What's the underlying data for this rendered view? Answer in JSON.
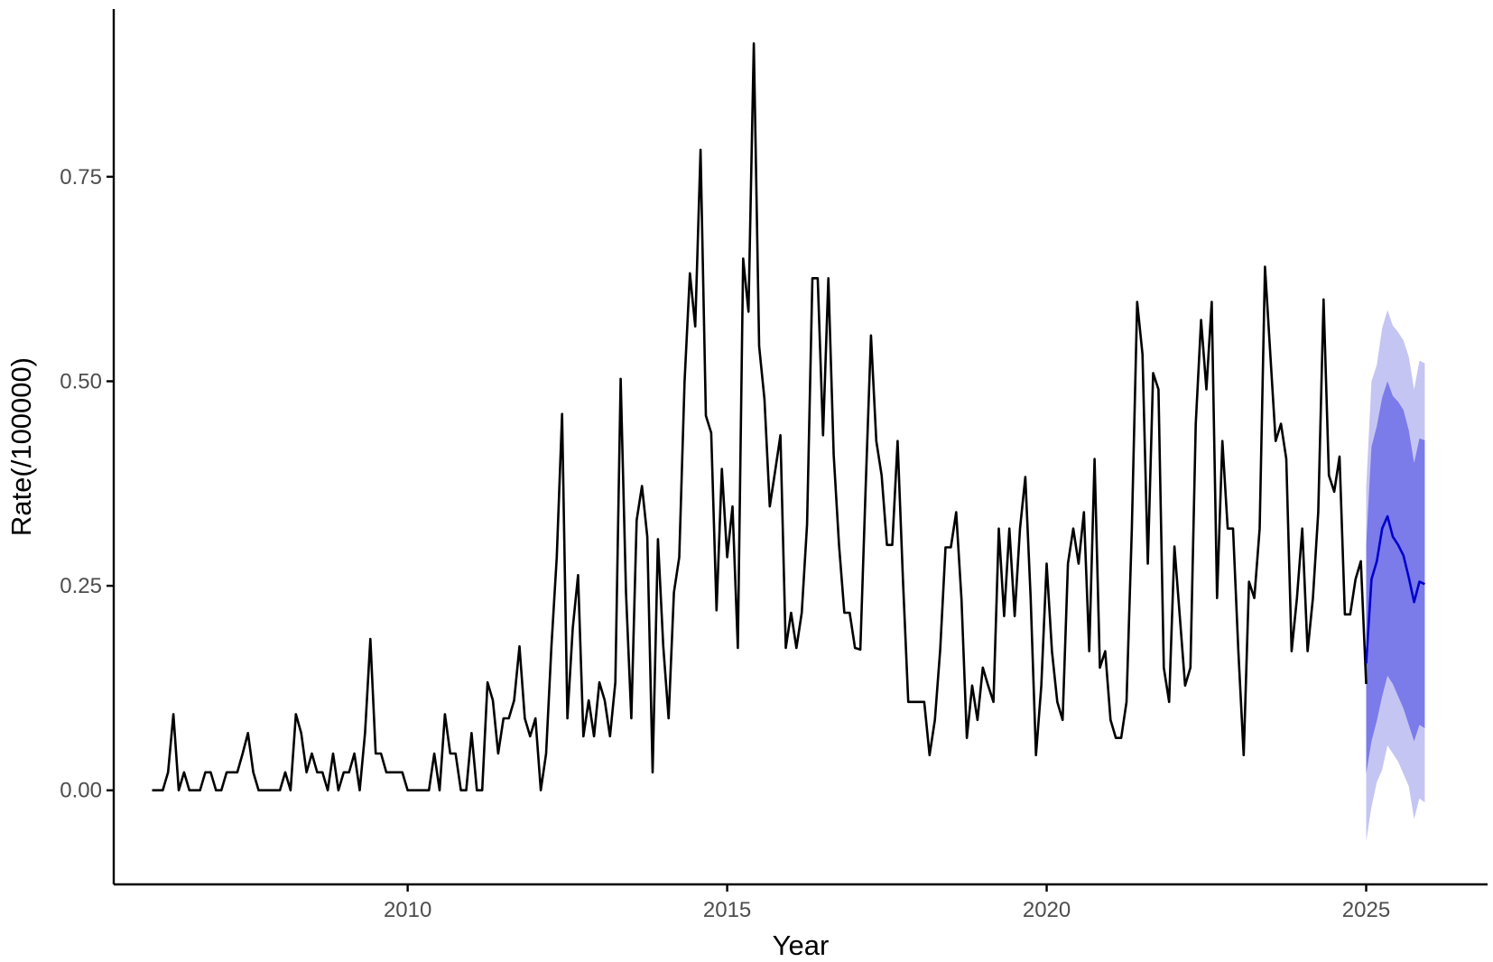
{
  "chart_data": {
    "type": "line",
    "title": "",
    "xlabel": "Year",
    "ylabel": "Rate(/100000)",
    "xlim": [
      2005.4,
      2026.9
    ],
    "ylim": [
      -0.115,
      0.955
    ],
    "x_ticks": [
      2010,
      2015,
      2020,
      2025
    ],
    "x_tick_labels": [
      "2010",
      "2015",
      "2020",
      "2025"
    ],
    "y_ticks": [
      0,
      0.25,
      0.5,
      0.75
    ],
    "y_tick_labels": [
      "0.00",
      "0.25",
      "0.50",
      "0.75"
    ],
    "grid": false,
    "legend": "none",
    "colors": {
      "observed": "#000000",
      "forecast": "#0000cc",
      "band_80": "#7b7bea",
      "band_95": "#c5c5f3",
      "axis": "#000000",
      "tick_text": "#4d4d4d"
    },
    "series": [
      {
        "role": "observed",
        "start_year": 2006,
        "frequency": "monthly",
        "values": [
          0,
          0,
          0,
          0.022,
          0.093,
          0,
          0.022,
          0,
          0,
          0,
          0.022,
          0.022,
          0,
          0,
          0.022,
          0.022,
          0.022,
          0.045,
          0.07,
          0.022,
          0,
          0,
          0,
          0,
          0,
          0.022,
          0,
          0.093,
          0.07,
          0.022,
          0.045,
          0.022,
          0.022,
          0,
          0.045,
          0,
          0.022,
          0.022,
          0.045,
          0,
          0.07,
          0.185,
          0.045,
          0.045,
          0.022,
          0.022,
          0.022,
          0.022,
          0,
          0,
          0,
          0,
          0,
          0.045,
          0,
          0.093,
          0.045,
          0.045,
          0,
          0,
          0.07,
          0,
          0,
          0.132,
          0.11,
          0.045,
          0.088,
          0.088,
          0.11,
          0.176,
          0.088,
          0.066,
          0.088,
          0,
          0.045,
          0.176,
          0.285,
          0.46,
          0.088,
          0.198,
          0.263,
          0.066,
          0.11,
          0.066,
          0.132,
          0.11,
          0.066,
          0.132,
          0.503,
          0.242,
          0.088,
          0.33,
          0.372,
          0.31,
          0.022,
          0.307,
          0.176,
          0.088,
          0.242,
          0.285,
          0.5,
          0.632,
          0.567,
          0.783,
          0.458,
          0.437,
          0.22,
          0.393,
          0.285,
          0.347,
          0.174,
          0.65,
          0.585,
          0.913,
          0.543,
          0.478,
          0.347,
          0.39,
          0.434,
          0.174,
          0.217,
          0.174,
          0.217,
          0.325,
          0.626,
          0.626,
          0.434,
          0.626,
          0.41,
          0.3,
          0.217,
          0.217,
          0.174,
          0.172,
          0.37,
          0.556,
          0.427,
          0.385,
          0.3,
          0.3,
          0.427,
          0.258,
          0.108,
          0.108,
          0.108,
          0.108,
          0.043,
          0.086,
          0.172,
          0.297,
          0.297,
          0.34,
          0.233,
          0.064,
          0.128,
          0.086,
          0.15,
          0.128,
          0.108,
          0.32,
          0.213,
          0.32,
          0.213,
          0.32,
          0.383,
          0.235,
          0.043,
          0.128,
          0.277,
          0.17,
          0.108,
          0.086,
          0.277,
          0.32,
          0.277,
          0.34,
          0.17,
          0.405,
          0.15,
          0.17,
          0.086,
          0.064,
          0.064,
          0.108,
          0.32,
          0.597,
          0.533,
          0.277,
          0.51,
          0.49,
          0.15,
          0.108,
          0.298,
          0.213,
          0.128,
          0.15,
          0.448,
          0.575,
          0.49,
          0.597,
          0.235,
          0.427,
          0.32,
          0.32,
          0.17,
          0.043,
          0.255,
          0.235,
          0.32,
          0.64,
          0.533,
          0.427,
          0.448,
          0.405,
          0.17,
          0.235,
          0.32,
          0.17,
          0.235,
          0.34,
          0.6,
          0.385,
          0.365,
          0.408,
          0.215,
          0.215,
          0.258,
          0.28,
          0.13
        ]
      },
      {
        "role": "forecast",
        "start_year": 2025,
        "frequency": "monthly",
        "values": [
          0.155,
          0.258,
          0.28,
          0.32,
          0.335,
          0.31,
          0.3,
          0.287,
          0.26,
          0.23,
          0.255,
          0.252
        ],
        "lower_80": [
          0.02,
          0.06,
          0.085,
          0.115,
          0.14,
          0.13,
          0.115,
          0.1,
          0.08,
          0.06,
          0.08,
          0.076
        ],
        "upper_80": [
          0.3,
          0.42,
          0.445,
          0.48,
          0.5,
          0.482,
          0.475,
          0.465,
          0.44,
          0.4,
          0.43,
          0.428
        ],
        "lower_95": [
          -0.062,
          -0.02,
          0.01,
          0.025,
          0.055,
          0.045,
          0.035,
          0.02,
          0.005,
          -0.035,
          -0.01,
          -0.015
        ],
        "upper_95": [
          0.37,
          0.5,
          0.52,
          0.565,
          0.587,
          0.568,
          0.56,
          0.55,
          0.53,
          0.49,
          0.525,
          0.522
        ]
      }
    ]
  }
}
